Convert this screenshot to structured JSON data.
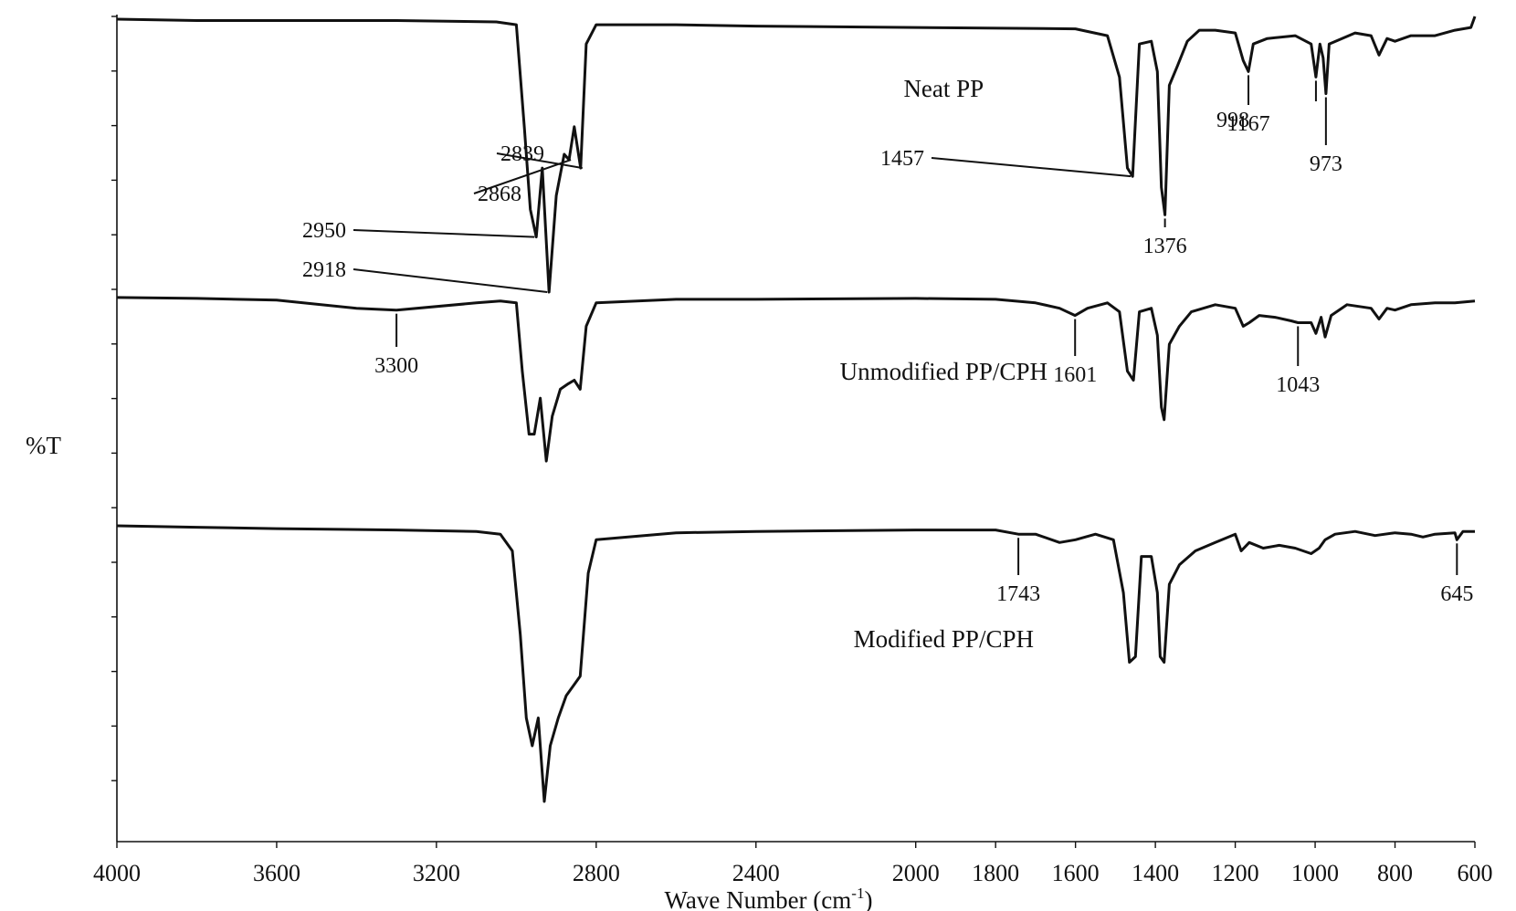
{
  "chart_data": {
    "type": "line",
    "xlabel": "Wave Number (cm",
    "xlabel_sup": "-1",
    "xlabel_close": ")",
    "ylabel": "%T",
    "xlim": [
      4000,
      600
    ],
    "x_reversed": true,
    "xticks": [
      4000,
      3600,
      3200,
      2800,
      2400,
      2000,
      1800,
      1600,
      1400,
      1200,
      1000,
      800,
      600
    ],
    "grid": false,
    "series": [
      {
        "name": "Neat PP",
        "points": [
          [
            4000,
            0.99
          ],
          [
            3800,
            0.985
          ],
          [
            3600,
            0.985
          ],
          [
            3300,
            0.985
          ],
          [
            3050,
            0.98
          ],
          [
            3000,
            0.97
          ],
          [
            2980,
            0.6
          ],
          [
            2965,
            0.3
          ],
          [
            2950,
            0.2
          ],
          [
            2935,
            0.45
          ],
          [
            2918,
            0.0
          ],
          [
            2900,
            0.35
          ],
          [
            2880,
            0.5
          ],
          [
            2868,
            0.48
          ],
          [
            2855,
            0.6
          ],
          [
            2839,
            0.45
          ],
          [
            2825,
            0.9
          ],
          [
            2800,
            0.97
          ],
          [
            2600,
            0.97
          ],
          [
            2400,
            0.965
          ],
          [
            2000,
            0.96
          ],
          [
            1600,
            0.955
          ],
          [
            1520,
            0.93
          ],
          [
            1490,
            0.78
          ],
          [
            1470,
            0.45
          ],
          [
            1457,
            0.42
          ],
          [
            1440,
            0.9
          ],
          [
            1410,
            0.91
          ],
          [
            1395,
            0.8
          ],
          [
            1385,
            0.38
          ],
          [
            1376,
            0.28
          ],
          [
            1365,
            0.75
          ],
          [
            1345,
            0.82
          ],
          [
            1320,
            0.91
          ],
          [
            1290,
            0.95
          ],
          [
            1250,
            0.95
          ],
          [
            1200,
            0.94
          ],
          [
            1180,
            0.84
          ],
          [
            1167,
            0.8
          ],
          [
            1155,
            0.9
          ],
          [
            1120,
            0.92
          ],
          [
            1050,
            0.93
          ],
          [
            1010,
            0.9
          ],
          [
            998,
            0.78
          ],
          [
            988,
            0.9
          ],
          [
            980,
            0.85
          ],
          [
            973,
            0.72
          ],
          [
            965,
            0.9
          ],
          [
            900,
            0.94
          ],
          [
            860,
            0.93
          ],
          [
            840,
            0.86
          ],
          [
            820,
            0.92
          ],
          [
            800,
            0.91
          ],
          [
            760,
            0.93
          ],
          [
            700,
            0.93
          ],
          [
            650,
            0.95
          ],
          [
            610,
            0.96
          ],
          [
            600,
            1.0
          ]
        ]
      },
      {
        "name": "Unmodified PP/CPH",
        "points": [
          [
            4000,
            0.96
          ],
          [
            3800,
            0.955
          ],
          [
            3600,
            0.945
          ],
          [
            3400,
            0.9
          ],
          [
            3300,
            0.89
          ],
          [
            3100,
            0.93
          ],
          [
            3040,
            0.94
          ],
          [
            3000,
            0.93
          ],
          [
            2985,
            0.55
          ],
          [
            2968,
            0.2
          ],
          [
            2955,
            0.2
          ],
          [
            2940,
            0.4
          ],
          [
            2925,
            0.05
          ],
          [
            2910,
            0.3
          ],
          [
            2890,
            0.45
          ],
          [
            2870,
            0.48
          ],
          [
            2855,
            0.5
          ],
          [
            2840,
            0.45
          ],
          [
            2825,
            0.8
          ],
          [
            2800,
            0.93
          ],
          [
            2600,
            0.95
          ],
          [
            2400,
            0.95
          ],
          [
            2000,
            0.955
          ],
          [
            1800,
            0.95
          ],
          [
            1700,
            0.93
          ],
          [
            1640,
            0.9
          ],
          [
            1601,
            0.86
          ],
          [
            1570,
            0.9
          ],
          [
            1520,
            0.93
          ],
          [
            1490,
            0.88
          ],
          [
            1470,
            0.55
          ],
          [
            1455,
            0.5
          ],
          [
            1440,
            0.88
          ],
          [
            1410,
            0.9
          ],
          [
            1395,
            0.75
          ],
          [
            1385,
            0.35
          ],
          [
            1378,
            0.28
          ],
          [
            1365,
            0.7
          ],
          [
            1340,
            0.8
          ],
          [
            1310,
            0.88
          ],
          [
            1250,
            0.92
          ],
          [
            1200,
            0.9
          ],
          [
            1180,
            0.8
          ],
          [
            1165,
            0.82
          ],
          [
            1140,
            0.86
          ],
          [
            1100,
            0.85
          ],
          [
            1060,
            0.83
          ],
          [
            1043,
            0.82
          ],
          [
            1010,
            0.82
          ],
          [
            998,
            0.76
          ],
          [
            985,
            0.85
          ],
          [
            975,
            0.74
          ],
          [
            960,
            0.86
          ],
          [
            920,
            0.92
          ],
          [
            860,
            0.9
          ],
          [
            840,
            0.84
          ],
          [
            820,
            0.9
          ],
          [
            800,
            0.89
          ],
          [
            760,
            0.92
          ],
          [
            700,
            0.93
          ],
          [
            650,
            0.93
          ],
          [
            600,
            0.94
          ]
        ]
      },
      {
        "name": "Modified PP/CPH",
        "points": [
          [
            4000,
            0.99
          ],
          [
            3800,
            0.985
          ],
          [
            3600,
            0.98
          ],
          [
            3300,
            0.975
          ],
          [
            3100,
            0.97
          ],
          [
            3040,
            0.96
          ],
          [
            3010,
            0.9
          ],
          [
            2990,
            0.6
          ],
          [
            2975,
            0.3
          ],
          [
            2960,
            0.2
          ],
          [
            2945,
            0.3
          ],
          [
            2930,
            0.0
          ],
          [
            2915,
            0.2
          ],
          [
            2895,
            0.3
          ],
          [
            2875,
            0.38
          ],
          [
            2855,
            0.42
          ],
          [
            2840,
            0.45
          ],
          [
            2820,
            0.82
          ],
          [
            2800,
            0.94
          ],
          [
            2600,
            0.965
          ],
          [
            2400,
            0.97
          ],
          [
            2000,
            0.975
          ],
          [
            1800,
            0.975
          ],
          [
            1743,
            0.96
          ],
          [
            1700,
            0.96
          ],
          [
            1640,
            0.93
          ],
          [
            1600,
            0.94
          ],
          [
            1550,
            0.96
          ],
          [
            1505,
            0.94
          ],
          [
            1480,
            0.75
          ],
          [
            1465,
            0.5
          ],
          [
            1450,
            0.52
          ],
          [
            1435,
            0.88
          ],
          [
            1410,
            0.88
          ],
          [
            1395,
            0.75
          ],
          [
            1388,
            0.52
          ],
          [
            1378,
            0.5
          ],
          [
            1365,
            0.78
          ],
          [
            1340,
            0.85
          ],
          [
            1300,
            0.9
          ],
          [
            1250,
            0.93
          ],
          [
            1200,
            0.96
          ],
          [
            1185,
            0.9
          ],
          [
            1165,
            0.93
          ],
          [
            1130,
            0.91
          ],
          [
            1090,
            0.92
          ],
          [
            1050,
            0.91
          ],
          [
            1010,
            0.89
          ],
          [
            990,
            0.91
          ],
          [
            975,
            0.94
          ],
          [
            950,
            0.96
          ],
          [
            900,
            0.97
          ],
          [
            850,
            0.955
          ],
          [
            800,
            0.965
          ],
          [
            760,
            0.96
          ],
          [
            730,
            0.95
          ],
          [
            700,
            0.96
          ],
          [
            650,
            0.965
          ],
          [
            645,
            0.94
          ],
          [
            630,
            0.97
          ],
          [
            600,
            0.97
          ]
        ]
      }
    ],
    "series_labels": [
      {
        "series": "Neat PP",
        "text": "Neat PP",
        "x": 1930
      },
      {
        "series": "Unmodified PP/CPH",
        "text": "Unmodified PP/CPH",
        "x": 1930
      },
      {
        "series": "Modified PP/CPH",
        "text": "Modified PP/CPH",
        "x": 1930
      }
    ],
    "annotations": [
      {
        "series": 0,
        "peak": 2950,
        "text": "2950"
      },
      {
        "series": 0,
        "peak": 2918,
        "text": "2918"
      },
      {
        "series": 0,
        "peak": 2868,
        "text": "2868"
      },
      {
        "series": 0,
        "peak": 2839,
        "text": "2839"
      },
      {
        "series": 0,
        "peak": 1457,
        "text": "1457"
      },
      {
        "series": 0,
        "peak": 1376,
        "text": "1376"
      },
      {
        "series": 0,
        "peak": 1167,
        "text": "1167"
      },
      {
        "series": 0,
        "peak": 998,
        "text": "998"
      },
      {
        "series": 0,
        "peak": 973,
        "text": "973"
      },
      {
        "series": 1,
        "peak": 3300,
        "text": "3300"
      },
      {
        "series": 1,
        "peak": 1601,
        "text": "1601"
      },
      {
        "series": 1,
        "peak": 1043,
        "text": "1043"
      },
      {
        "series": 2,
        "peak": 1743,
        "text": "1743"
      },
      {
        "series": 2,
        "peak": 645,
        "text": "645"
      }
    ]
  }
}
